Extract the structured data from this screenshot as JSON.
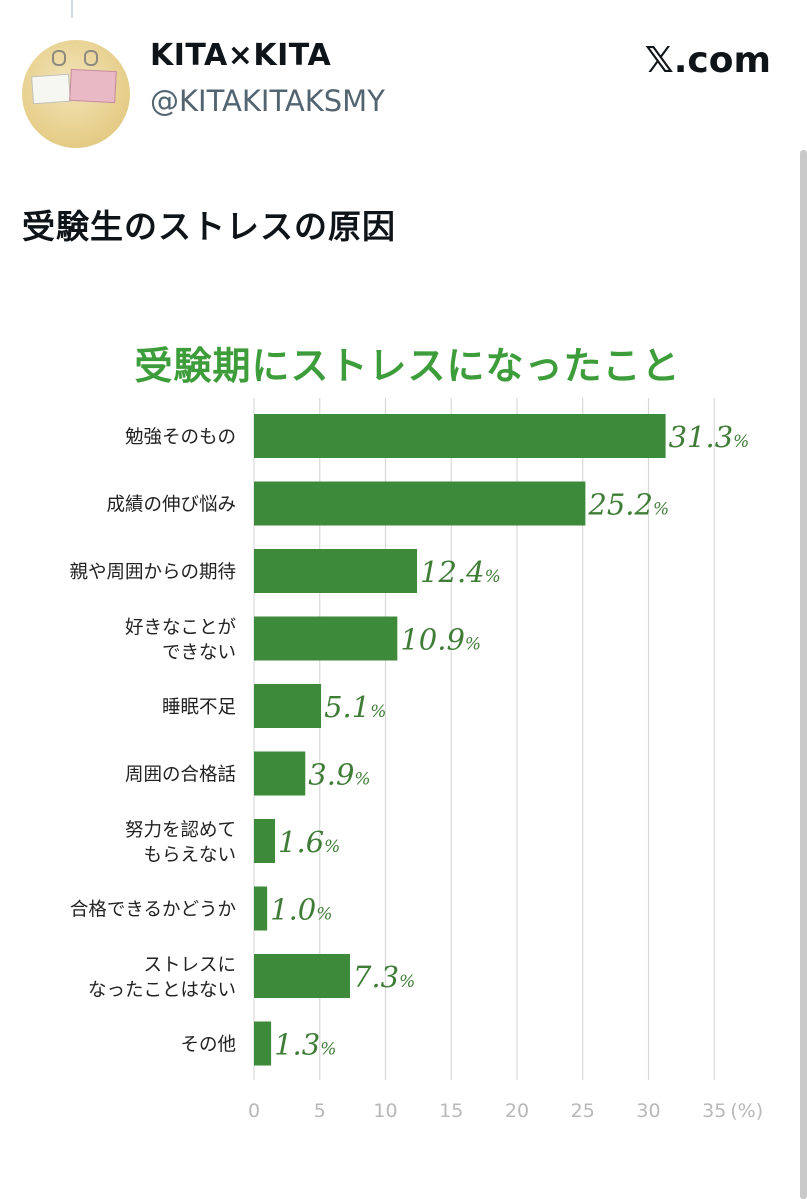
{
  "header": {
    "display_name": "KITA×KITA",
    "handle": "@KITAKITAKSMY",
    "site": "𝕏.com"
  },
  "tweet": {
    "text": "受験生のストレスの原因"
  },
  "colors": {
    "bar": "#3d8a3a",
    "title": "#3e9d3b",
    "label": "#3f7d37",
    "grid": "#d8d8d8"
  },
  "chart_data": {
    "type": "bar",
    "orientation": "horizontal",
    "title": "受験期にストレスになったこと",
    "categories": [
      [
        "勉強そのもの"
      ],
      [
        "成績の伸び悩み"
      ],
      [
        "親や周囲からの期待"
      ],
      [
        "好きなことが",
        "できない"
      ],
      [
        "睡眠不足"
      ],
      [
        "周囲の合格話"
      ],
      [
        "努力を認めて",
        "もらえない"
      ],
      [
        "合格できるかどうか"
      ],
      [
        "ストレスに",
        "なったことはない"
      ],
      [
        "その他"
      ]
    ],
    "values": [
      31.3,
      25.2,
      12.4,
      10.9,
      5.1,
      3.9,
      1.6,
      1.0,
      7.3,
      1.3
    ],
    "value_labels": [
      "31.3",
      "25.2",
      "12.4",
      "10.9",
      "5.1",
      "3.9",
      "1.6",
      "1.0",
      "7.3",
      "1.3"
    ],
    "value_suffix": "%",
    "xlim": [
      0,
      35
    ],
    "xticks": [
      "0",
      "5",
      "10",
      "15",
      "20",
      "25",
      "30",
      "35"
    ],
    "xunit": "(%)",
    "grid": true
  }
}
